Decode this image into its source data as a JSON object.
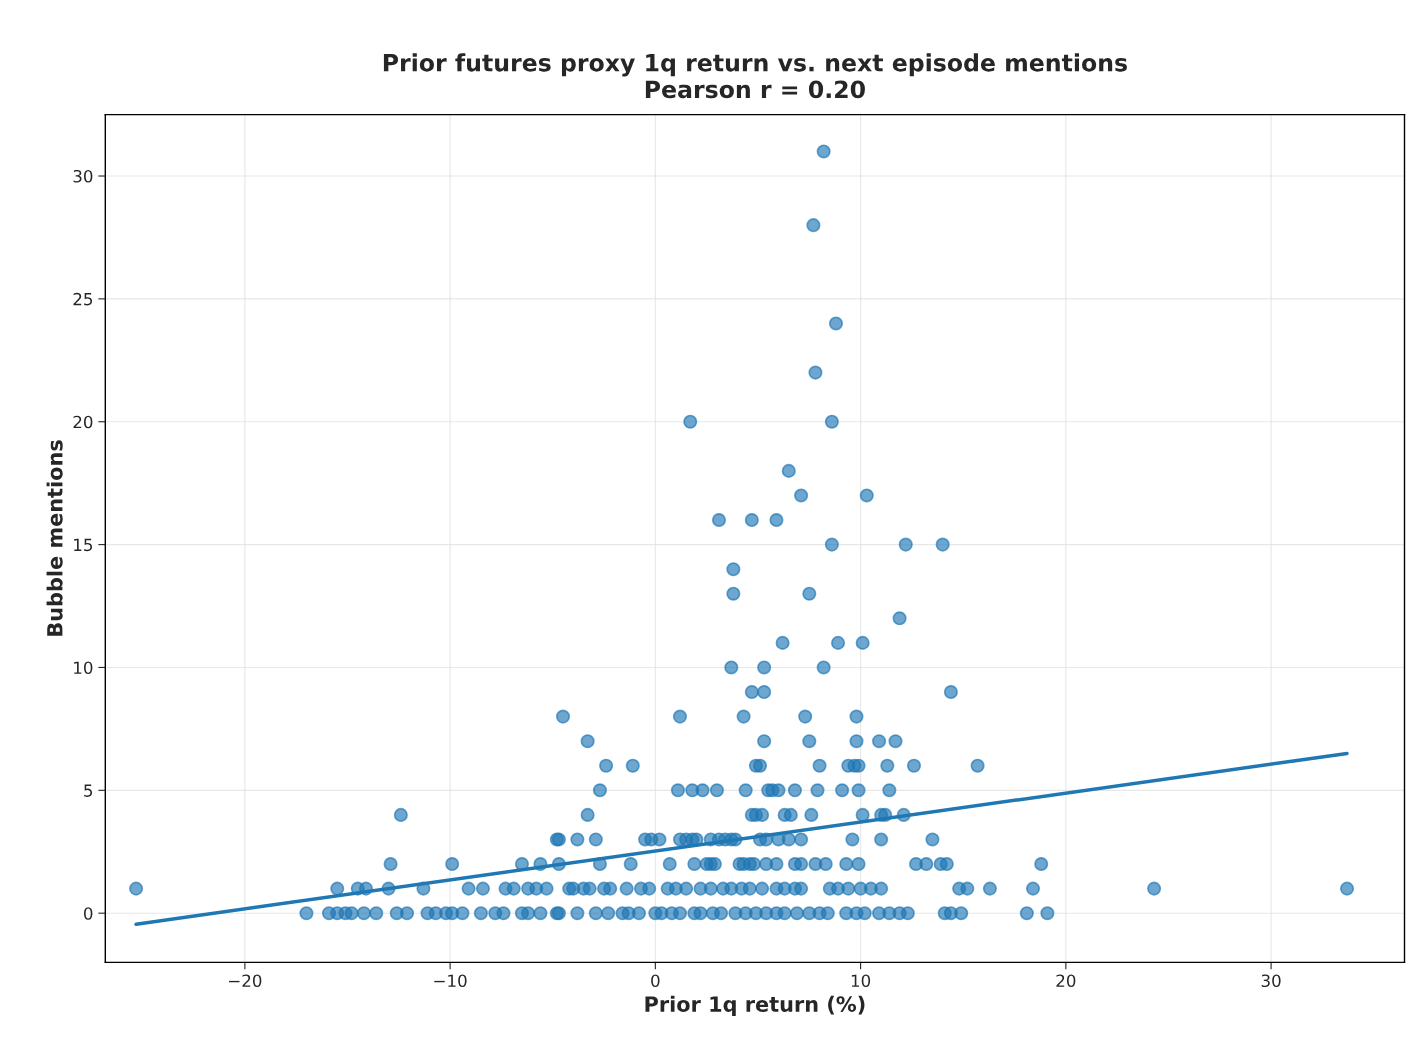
{
  "chart_data": {
    "type": "scatter",
    "title": "Prior futures proxy 1q return vs. next episode mentions",
    "subtitle": "Pearson r = 0.20",
    "xlabel": "Prior 1q return (%)",
    "ylabel": "Bubble mentions",
    "xlim": [
      -26.8,
      36.5
    ],
    "xticks": [
      {
        "value": -20,
        "label": "−20"
      },
      {
        "value": -10,
        "label": "−10"
      },
      0,
      10,
      20,
      30
    ],
    "ylim": [
      -2,
      32.5
    ],
    "yticks": [
      0,
      5,
      10,
      15,
      20,
      25,
      30
    ],
    "grid": true,
    "series": [
      {
        "marker": "circle",
        "color": "#1f77b4",
        "x": [
          8.2,
          7.7,
          8.8,
          7.8,
          1.7,
          8.6,
          6.5,
          7.1,
          10.3,
          3.1,
          4.7,
          5.9,
          8.6,
          12.2,
          14.0,
          3.8,
          3.8,
          7.5,
          11.9,
          6.2,
          8.9,
          10.1,
          3.7,
          5.3,
          8.2,
          4.7,
          5.3,
          14.4,
          -4.5,
          1.2,
          4.3,
          7.3,
          9.8,
          -3.3,
          5.3,
          7.5,
          9.8,
          10.9,
          11.7,
          -2.4,
          -1.1,
          4.9,
          5.1,
          8.0,
          9.4,
          9.7,
          9.9,
          11.3,
          12.6,
          15.7,
          -2.7,
          1.1,
          1.8,
          2.3,
          3.0,
          4.4,
          5.5,
          5.7,
          6.0,
          6.8,
          7.9,
          9.1,
          9.9,
          11.4,
          -12.4,
          -3.3,
          4.7,
          4.9,
          5.2,
          6.3,
          6.6,
          7.6,
          10.1,
          11.0,
          11.2,
          12.1,
          -4.8,
          -4.7,
          -3.8,
          -2.9,
          -0.5,
          -0.2,
          0.2,
          1.2,
          1.5,
          1.8,
          2.0,
          2.7,
          3.1,
          3.4,
          3.7,
          3.9,
          5.1,
          5.4,
          6.0,
          6.5,
          7.1,
          9.6,
          11.0,
          13.5,
          -12.9,
          -9.9,
          -6.5,
          -5.6,
          -4.7,
          -2.7,
          -1.2,
          0.7,
          1.9,
          2.5,
          2.7,
          2.9,
          4.1,
          4.3,
          4.6,
          4.8,
          5.4,
          5.9,
          6.8,
          7.1,
          7.8,
          8.3,
          9.3,
          9.9,
          12.7,
          13.2,
          13.9,
          14.2,
          18.8,
          -25.3,
          -15.5,
          -14.5,
          -14.1,
          -13.0,
          -11.3,
          -9.1,
          -8.4,
          -7.3,
          -6.9,
          -6.2,
          -5.8,
          -5.3,
          -4.2,
          -4.0,
          -3.5,
          -3.2,
          -2.5,
          -2.2,
          -1.4,
          -0.7,
          -0.3,
          0.6,
          1.0,
          1.5,
          2.2,
          2.7,
          3.3,
          3.7,
          4.2,
          4.6,
          5.2,
          5.9,
          6.3,
          6.8,
          7.1,
          8.5,
          8.9,
          9.4,
          10.0,
          10.5,
          11.0,
          14.8,
          15.2,
          16.3,
          18.4,
          24.3,
          33.7,
          -17.0,
          -15.9,
          -15.5,
          -15.1,
          -14.8,
          -14.2,
          -13.6,
          -12.6,
          -12.1,
          -11.1,
          -10.7,
          -10.2,
          -9.9,
          -9.4,
          -8.5,
          -7.8,
          -7.4,
          -6.5,
          -6.2,
          -5.6,
          -4.8,
          -4.7,
          -3.8,
          -2.9,
          -2.3,
          -1.6,
          -1.3,
          -0.8,
          0.0,
          0.3,
          0.8,
          1.2,
          1.9,
          2.2,
          2.8,
          3.2,
          3.9,
          4.4,
          4.9,
          5.4,
          5.9,
          6.3,
          6.9,
          7.5,
          8.0,
          8.4,
          9.3,
          9.8,
          10.2,
          10.9,
          11.4,
          11.9,
          12.3,
          14.1,
          14.4,
          14.9,
          18.1,
          19.1
        ],
        "values": [
          31,
          28,
          24,
          22,
          20,
          20,
          18,
          17,
          17,
          16,
          16,
          16,
          15,
          15,
          15,
          14,
          13,
          13,
          12,
          11,
          11,
          11,
          10,
          10,
          10,
          9,
          9,
          9,
          8,
          8,
          8,
          8,
          8,
          7,
          7,
          7,
          7,
          7,
          7,
          6,
          6,
          6,
          6,
          6,
          6,
          6,
          6,
          6,
          6,
          6,
          5,
          5,
          5,
          5,
          5,
          5,
          5,
          5,
          5,
          5,
          5,
          5,
          5,
          5,
          4,
          4,
          4,
          4,
          4,
          4,
          4,
          4,
          4,
          4,
          4,
          4,
          3,
          3,
          3,
          3,
          3,
          3,
          3,
          3,
          3,
          3,
          3,
          3,
          3,
          3,
          3,
          3,
          3,
          3,
          3,
          3,
          3,
          3,
          3,
          3,
          2,
          2,
          2,
          2,
          2,
          2,
          2,
          2,
          2,
          2,
          2,
          2,
          2,
          2,
          2,
          2,
          2,
          2,
          2,
          2,
          2,
          2,
          2,
          2,
          2,
          2,
          2,
          2,
          2,
          1,
          1,
          1,
          1,
          1,
          1,
          1,
          1,
          1,
          1,
          1,
          1,
          1,
          1,
          1,
          1,
          1,
          1,
          1,
          1,
          1,
          1,
          1,
          1,
          1,
          1,
          1,
          1,
          1,
          1,
          1,
          1,
          1,
          1,
          1,
          1,
          1,
          1,
          1,
          1,
          1,
          1,
          1,
          1,
          1,
          1,
          1,
          1,
          0,
          0,
          0,
          0,
          0,
          0,
          0,
          0,
          0,
          0,
          0,
          0,
          0,
          0,
          0,
          0,
          0,
          0,
          0,
          0,
          0,
          0,
          0,
          0,
          0,
          0,
          0,
          0,
          0,
          0,
          0,
          0,
          0,
          0,
          0,
          0,
          0,
          0,
          0,
          0,
          0,
          0,
          0,
          0,
          0,
          0,
          0,
          0,
          0,
          0,
          0,
          0,
          0,
          0,
          0,
          0,
          0,
          0
        ]
      },
      {
        "type": "line",
        "color": "#1f77b4",
        "x": [
          -25.3,
          33.7
        ],
        "values": [
          -0.45,
          6.5
        ]
      }
    ]
  }
}
